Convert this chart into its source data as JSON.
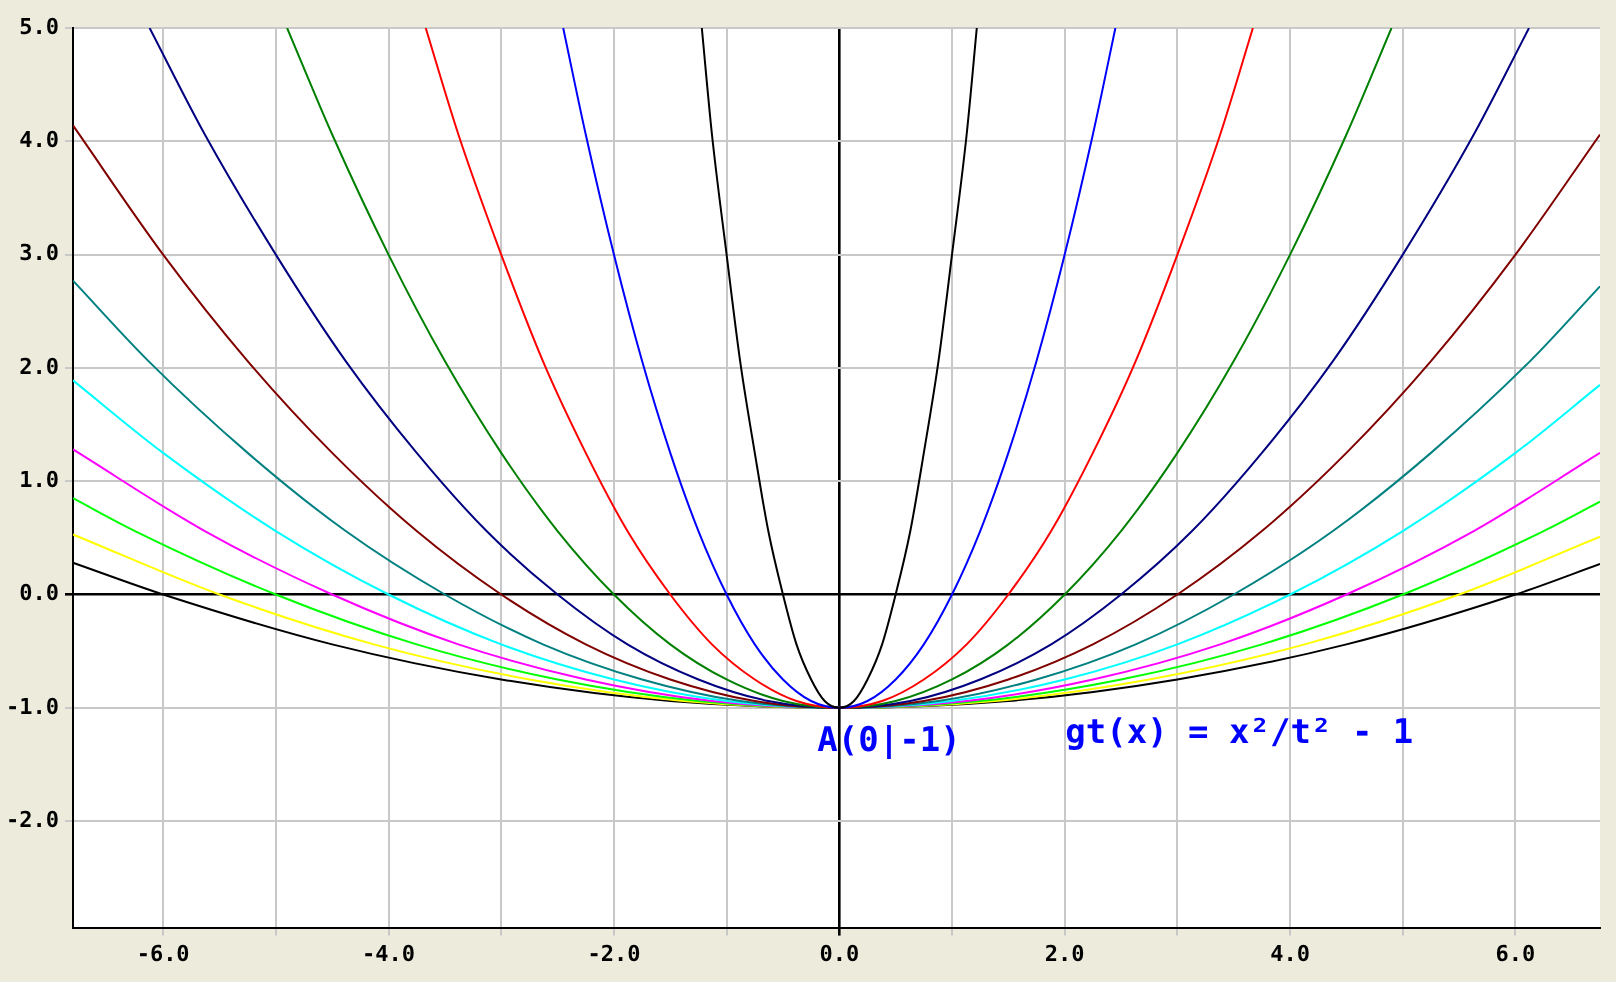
{
  "chart_data": {
    "type": "line",
    "marker": "none",
    "grid": true,
    "legend": false,
    "xlim": [
      -6.8,
      6.75
    ],
    "ylim": [
      -2.94,
      5
    ],
    "xticks": [
      {
        "value": -6,
        "label": "-6.0"
      },
      {
        "value": -5,
        "label": null
      },
      {
        "value": -4,
        "label": "-4.0"
      },
      {
        "value": -3,
        "label": null
      },
      {
        "value": -2,
        "label": "-2.0"
      },
      {
        "value": -1,
        "label": null
      },
      {
        "value": 0,
        "label": "0.0"
      },
      {
        "value": 1,
        "label": null
      },
      {
        "value": 2,
        "label": "2.0"
      },
      {
        "value": 3,
        "label": null
      },
      {
        "value": 4,
        "label": "4.0"
      },
      {
        "value": 5,
        "label": null
      },
      {
        "value": 6,
        "label": "6.0"
      }
    ],
    "yticks": [
      {
        "value": -2,
        "label": "-2.0"
      },
      {
        "value": -1,
        "label": "-1.0"
      },
      {
        "value": 0,
        "label": "0.0"
      },
      {
        "value": 1,
        "label": "1.0"
      },
      {
        "value": 2,
        "label": "2.0"
      },
      {
        "value": 3,
        "label": "3.0"
      },
      {
        "value": 4,
        "label": "4.0"
      },
      {
        "value": 5,
        "label": "5.0"
      }
    ],
    "annotations": [
      {
        "text": "A(0|-1)",
        "x": 0,
        "y": -1
      },
      "gt(x) = x²/t² - 1"
    ],
    "series": [
      {
        "color": "#000000",
        "x": [
          -1.22,
          -1.13,
          -1,
          -0.88,
          -0.75,
          -0.63,
          -0.5,
          -0.38,
          -0.25,
          -0.13,
          0,
          0.13,
          0.25,
          0.38,
          0.5,
          0.63,
          0.75,
          0.88,
          1,
          1.13,
          1.22
        ],
        "values": [
          5,
          4.06,
          3,
          2.06,
          1.25,
          0.56,
          0,
          -0.44,
          -0.75,
          -0.94,
          -1,
          -0.94,
          -0.75,
          -0.44,
          0,
          0.56,
          1.25,
          2.06,
          3,
          4.06,
          5
        ]
      },
      {
        "color": "#0000ff",
        "x": [
          -2.45,
          -2.25,
          -2,
          -1.75,
          -1.5,
          -1.25,
          -1,
          -0.75,
          -0.5,
          -0.25,
          0,
          0.25,
          0.5,
          0.75,
          1,
          1.25,
          1.5,
          1.75,
          2,
          2.25,
          2.45
        ],
        "values": [
          5,
          4.06,
          3,
          2.06,
          1.25,
          0.56,
          0,
          -0.44,
          -0.75,
          -0.94,
          -1,
          -0.94,
          -0.75,
          -0.44,
          0,
          0.56,
          1.25,
          2.06,
          3,
          4.06,
          5
        ]
      },
      {
        "color": "#ff0000",
        "x": [
          -3.67,
          -3.38,
          -3,
          -2.63,
          -2.25,
          -1.88,
          -1.5,
          -1.13,
          -0.75,
          -0.38,
          0,
          0.38,
          0.75,
          1.13,
          1.5,
          1.88,
          2.25,
          2.63,
          3,
          3.38,
          3.67
        ],
        "values": [
          5,
          4.06,
          3,
          2.06,
          1.25,
          0.56,
          0,
          -0.44,
          -0.75,
          -0.94,
          -1,
          -0.94,
          -0.75,
          -0.44,
          0,
          0.56,
          1.25,
          2.06,
          3,
          4.06,
          5
        ]
      },
      {
        "color": "#008000",
        "x": [
          -4.9,
          -4.5,
          -4,
          -3.5,
          -3,
          -2.5,
          -2,
          -1.5,
          -1,
          -0.5,
          0,
          0.5,
          1,
          1.5,
          2,
          2.5,
          3,
          3.5,
          4,
          4.5,
          4.9
        ],
        "values": [
          5,
          4.06,
          3,
          2.06,
          1.25,
          0.56,
          0,
          -0.44,
          -0.75,
          -0.94,
          -1,
          -0.94,
          -0.75,
          -0.44,
          0,
          0.56,
          1.25,
          2.06,
          3,
          4.06,
          5
        ]
      },
      {
        "color": "#000080",
        "x": [
          -6.12,
          -5.63,
          -5,
          -4.38,
          -3.75,
          -3.13,
          -2.5,
          -1.88,
          -1.25,
          -0.63,
          0,
          0.63,
          1.25,
          1.88,
          2.5,
          3.13,
          3.75,
          4.38,
          5,
          5.63,
          6.12
        ],
        "values": [
          5,
          4.06,
          3,
          2.06,
          1.25,
          0.56,
          0,
          -0.44,
          -0.75,
          -0.94,
          -1,
          -0.94,
          -0.75,
          -0.44,
          0,
          0.56,
          1.25,
          2.06,
          3,
          4.06,
          5
        ]
      },
      {
        "color": "#800000",
        "x": [
          -6.8,
          -6,
          -5.25,
          -4.5,
          -3.75,
          -3,
          -2.25,
          -1.5,
          -0.75,
          0,
          0.75,
          1.5,
          2.25,
          3,
          3.75,
          4.5,
          5.25,
          6,
          6.75
        ],
        "values": [
          4.14,
          3,
          2.06,
          1.25,
          0.56,
          0,
          -0.44,
          -0.75,
          -0.94,
          -1,
          -0.94,
          -0.75,
          -0.44,
          0,
          0.56,
          1.25,
          2.06,
          3,
          4.06
        ]
      },
      {
        "color": "#008080",
        "x": [
          -6.8,
          -6.13,
          -5.25,
          -4.38,
          -3.5,
          -2.63,
          -1.75,
          -0.88,
          0,
          0.88,
          1.75,
          2.63,
          3.5,
          4.38,
          5.25,
          6.13,
          6.75
        ],
        "values": [
          2.77,
          2.06,
          1.25,
          0.56,
          0,
          -0.44,
          -0.75,
          -0.94,
          -1,
          -0.94,
          -0.75,
          -0.44,
          0,
          0.56,
          1.25,
          2.06,
          2.72
        ]
      },
      {
        "color": "#00ffff",
        "x": [
          -6.8,
          -6,
          -5,
          -4,
          -3,
          -2,
          -1,
          0,
          1,
          2,
          3,
          4,
          5,
          6,
          6.75
        ],
        "values": [
          1.89,
          1.25,
          0.56,
          0,
          -0.44,
          -0.75,
          -0.94,
          -1,
          -0.94,
          -0.75,
          -0.44,
          0,
          0.56,
          1.25,
          1.85
        ]
      },
      {
        "color": "#ff00ff",
        "x": [
          -6.8,
          -5.63,
          -4.5,
          -3.38,
          -2.25,
          -1.13,
          0,
          1.13,
          2.25,
          3.38,
          4.5,
          5.63,
          6.75
        ],
        "values": [
          1.28,
          0.56,
          0,
          -0.44,
          -0.75,
          -0.94,
          -1,
          -0.94,
          -0.75,
          -0.44,
          0,
          0.56,
          1.25
        ]
      },
      {
        "color": "#00ff00",
        "x": [
          -6.8,
          -6.25,
          -5,
          -3.75,
          -2.5,
          -1.25,
          0,
          1.25,
          2.5,
          3.75,
          5,
          6.25,
          6.75
        ],
        "values": [
          0.85,
          0.56,
          0,
          -0.44,
          -0.75,
          -0.94,
          -1,
          -0.94,
          -0.75,
          -0.44,
          0,
          0.56,
          0.82
        ]
      },
      {
        "color": "#ffff00",
        "x": [
          -6.8,
          -5.5,
          -4.13,
          -2.75,
          -1.38,
          0,
          1.38,
          2.75,
          4.13,
          5.5,
          6.75
        ],
        "values": [
          0.53,
          0,
          -0.44,
          -0.75,
          -0.94,
          -1,
          -0.94,
          -0.75,
          -0.44,
          0,
          0.51
        ]
      },
      {
        "color": "#000000",
        "x": [
          -6.8,
          -6,
          -4.5,
          -3,
          -1.5,
          0,
          1.5,
          3,
          4.5,
          6,
          6.75
        ],
        "values": [
          0.28,
          0,
          -0.44,
          -0.75,
          -0.94,
          -1,
          -0.94,
          -0.75,
          -0.44,
          0,
          0.27
        ]
      }
    ]
  }
}
